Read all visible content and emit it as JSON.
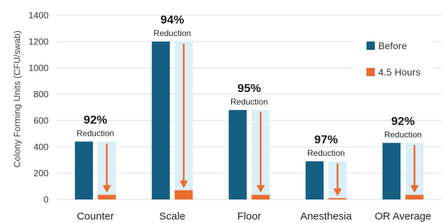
{
  "chart_data": {
    "type": "bar",
    "ylabel": "Colony Forming Units (CFU/swab)",
    "ylim": [
      0,
      1400
    ],
    "yticks": [
      0,
      200,
      400,
      600,
      800,
      1000,
      1200,
      1400
    ],
    "grid": true,
    "legend_placement": "top-right",
    "categories": [
      "Counter",
      "Scale",
      "Floor",
      "Anesthesia",
      "OR Average"
    ],
    "series": [
      {
        "name": "Before",
        "color": "#155f82",
        "values": [
          440,
          1200,
          680,
          290,
          430
        ]
      },
      {
        "name": "4.5 Hours",
        "color": "#ec6b2d",
        "values": [
          35,
          70,
          35,
          10,
          35
        ]
      }
    ],
    "annotations": [
      {
        "category": "Counter",
        "percent": "92%",
        "text": "Reduction"
      },
      {
        "category": "Scale",
        "percent": "94%",
        "text": "Reduction"
      },
      {
        "category": "Floor",
        "percent": "95%",
        "text": "Reduction"
      },
      {
        "category": "Anesthesia",
        "percent": "97%",
        "text": "Reduction"
      },
      {
        "category": "OR Average",
        "percent": "92%",
        "text": "Reduction"
      }
    ],
    "colors": {
      "reduction_band": "#daeff8",
      "arrow": "#ec6b2d"
    }
  }
}
